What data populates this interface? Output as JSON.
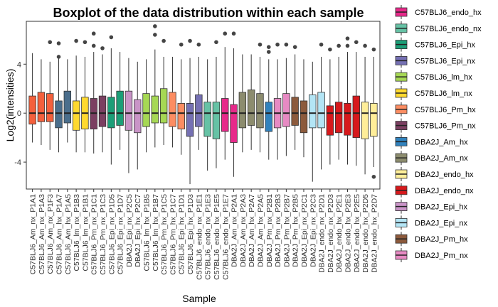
{
  "chart_data": {
    "type": "boxplot",
    "title": "Boxplot of the data distribution within each sample",
    "xlabel": "Sample",
    "ylabel": "Log2(intensities)",
    "ylim": [
      -6.2,
      7.5
    ],
    "yticks": [
      -4,
      0,
      4
    ],
    "ytick_labels": [
      "-4",
      "0",
      "4"
    ],
    "legend_position": "right",
    "grid": false,
    "groups": [
      {
        "name": "C57BLJ6_endo_hx",
        "color": "#E7298A"
      },
      {
        "name": "C57BLJ6_endo_nx",
        "color": "#66C2A5"
      },
      {
        "name": "C57BLJ6_Epi_hx",
        "color": "#1B9E77"
      },
      {
        "name": "C57BLJ6_Epi_nx",
        "color": "#7570B3"
      },
      {
        "name": "C57BLJ6_lm_hx",
        "color": "#A6D854"
      },
      {
        "name": "C57BLJ6_lm_nx",
        "color": "#FFD92F"
      },
      {
        "name": "C57BLJ6_Pm_hx",
        "color": "#FC8D62"
      },
      {
        "name": "C57BLJ6_Pm_nx",
        "color": "#7B3F61"
      },
      {
        "name": "DBA2J_Am_hx",
        "color": "#3182BD"
      },
      {
        "name": "DBA2J_Am_nx",
        "color": "#8C8C6E"
      },
      {
        "name": "DBA2J_endo_hx",
        "color": "#FFEE99"
      },
      {
        "name": "DBA2J_endo_nx",
        "color": "#D7191C"
      },
      {
        "name": "DBA2J_Epi_hx",
        "color": "#C994C7"
      },
      {
        "name": "DBA2J_Epi_nx",
        "color": "#B3E5F5"
      },
      {
        "name": "DBA2J_Pm_hx",
        "color": "#8C5A3C"
      },
      {
        "name": "DBA2J_Pm_nx",
        "color": "#E78AC3"
      }
    ],
    "samples": [
      {
        "label": "C57BLJ6_Am_nx_P1A1",
        "color": "#F4603C",
        "q1": -0.9,
        "median": 0,
        "q3": 1.4,
        "wlow": -2.4,
        "whigh": 4.9,
        "outliers": []
      },
      {
        "label": "C57BLJ6_Am_nx_P1A3",
        "color": "#F4603C",
        "q1": -0.7,
        "median": 0,
        "q3": 1.7,
        "wlow": -2.6,
        "whigh": 4.4,
        "outliers": []
      },
      {
        "label": "C57BLJ6_Am_nx_P1F3",
        "color": "#F4603C",
        "q1": -0.7,
        "median": 0,
        "q3": 1.6,
        "wlow": -3.0,
        "whigh": 4.2,
        "outliers": [
          5.8
        ]
      },
      {
        "label": "C57BLJ6_Am_hx_P1A7",
        "color": "#4A6E8C",
        "q1": -1.2,
        "median": 0,
        "q3": 1.0,
        "wlow": -3.2,
        "whigh": 4.5,
        "outliers": [
          4.6,
          5.7
        ]
      },
      {
        "label": "C57BLJ6_Am_hx_P1A5",
        "color": "#4A6E8C",
        "q1": -0.8,
        "median": 0,
        "q3": 1.8,
        "wlow": -2.4,
        "whigh": 4.4,
        "outliers": []
      },
      {
        "label": "C57BLJ6_lm_nx_P1B3",
        "color": "#FFD92F",
        "q1": -1.4,
        "median": 0,
        "q3": 1.0,
        "wlow": -3.2,
        "whigh": 4.7,
        "outliers": [
          5.9
        ]
      },
      {
        "label": "C57BLJ6_lm_nx_P1B1",
        "color": "#FFD92F",
        "q1": -1.3,
        "median": 0,
        "q3": 1.3,
        "wlow": -3.2,
        "whigh": 4.6,
        "outliers": [
          5.8
        ]
      },
      {
        "label": "C57BLJ6_Pm_nx_P1C1",
        "color": "#7B3F61",
        "q1": -1.3,
        "median": 0,
        "q3": 1.2,
        "wlow": -3.3,
        "whigh": 5.0,
        "outliers": [
          5.5,
          6.5
        ]
      },
      {
        "label": "C57BLJ6_Pm_nx_P1C3",
        "color": "#7B3F61",
        "q1": -1.1,
        "median": 0,
        "q3": 1.4,
        "wlow": -3.2,
        "whigh": 4.8,
        "outliers": [
          5.3
        ]
      },
      {
        "label": "C57BLJ6_Epi_nx_P1D5",
        "color": "#1B9E77",
        "q1": -1.2,
        "median": 0,
        "q3": 1.3,
        "wlow": -4.2,
        "whigh": 5.3,
        "outliers": [
          6.2
        ]
      },
      {
        "label": "C57BLJ6_Epi_nx_P1D7",
        "color": "#1B9E77",
        "q1": -1.0,
        "median": 0,
        "q3": 1.8,
        "wlow": -3.0,
        "whigh": 5.0,
        "outliers": []
      },
      {
        "label": "DBA2J_Epi_nx_P2C5",
        "color": "#C994C7",
        "q1": -1.4,
        "median": 0,
        "q3": 1.8,
        "wlow": -4.9,
        "whigh": 4.5,
        "outliers": []
      },
      {
        "label": "DBA2J_Epi_hx_P2C7",
        "color": "#C994C7",
        "q1": -1.6,
        "median": 0,
        "q3": 1.1,
        "wlow": -4.6,
        "whigh": 4.2,
        "outliers": []
      },
      {
        "label": "C57BLJ6_lm_hx_P1B5",
        "color": "#A6D854",
        "q1": -1.1,
        "median": 0,
        "q3": 1.6,
        "wlow": -3.2,
        "whigh": 4.4,
        "outliers": []
      },
      {
        "label": "C57BLJ6_lm_hx_P1B7",
        "color": "#A6D854",
        "q1": -0.8,
        "median": 0,
        "q3": 1.4,
        "wlow": -2.8,
        "whigh": 5.2,
        "outliers": [
          6.4,
          7.1
        ]
      },
      {
        "label": "C57BLJ6_Pm_hx_P1C5",
        "color": "#A6D854",
        "q1": -0.8,
        "median": 0,
        "q3": 2.0,
        "wlow": -2.6,
        "whigh": 4.6,
        "outliers": [
          5.9
        ]
      },
      {
        "label": "C57BLJ6_Pm_hx_P1C7",
        "color": "#FC8D62",
        "q1": -1.1,
        "median": 0,
        "q3": 1.7,
        "wlow": -2.8,
        "whigh": 4.6,
        "outliers": []
      },
      {
        "label": "C57BLJ6_Epi_hx_P1D1",
        "color": "#FC8D62",
        "q1": -1.3,
        "median": 0,
        "q3": 0.8,
        "wlow": -3.4,
        "whigh": 4.4,
        "outliers": [
          5.6
        ]
      },
      {
        "label": "C57BLJ6_Epi_hx_P1D3",
        "color": "#7570B3",
        "q1": -1.9,
        "median": 0,
        "q3": 0.8,
        "wlow": -5.8,
        "whigh": 4.5,
        "outliers": [
          5.9
        ]
      },
      {
        "label": "C57BLJ6_endo_nx_P1E1",
        "color": "#7570B3",
        "q1": -1.1,
        "median": 0,
        "q3": 1.5,
        "wlow": -3.0,
        "whigh": 4.6,
        "outliers": [
          5.6
        ]
      },
      {
        "label": "C57BLJ6_endo_nx_P1E3",
        "color": "#66C2A5",
        "q1": -1.9,
        "median": 0,
        "q3": 0.9,
        "wlow": -4.7,
        "whigh": 4.4,
        "outliers": []
      },
      {
        "label": "C57BLJ6_endo_hx_P1E5",
        "color": "#66C2A5",
        "q1": -2.1,
        "median": 0,
        "q3": 0.9,
        "wlow": -4.5,
        "whigh": 4.6,
        "outliers": [
          5.8
        ]
      },
      {
        "label": "C57BLJ6_endo_hx_P1E7",
        "color": "#E7298A",
        "q1": -1.5,
        "median": 0,
        "q3": 1.2,
        "wlow": -3.8,
        "whigh": 5.4,
        "outliers": [
          6.5
        ]
      },
      {
        "label": "DBA2J_Am_nx_P2A1",
        "color": "#E7298A",
        "q1": -2.4,
        "median": 0,
        "q3": 0.7,
        "wlow": -5.2,
        "whigh": 5.3,
        "outliers": [
          6.5
        ]
      },
      {
        "label": "DBA2J_Am_nx_P2A3",
        "color": "#8C8C6E",
        "q1": -1.2,
        "median": 0,
        "q3": 1.7,
        "wlow": -3.2,
        "whigh": 4.8,
        "outliers": []
      },
      {
        "label": "DBA2J_Am_hx_P2A7",
        "color": "#8C8C6E",
        "q1": -1.0,
        "median": 0,
        "q3": 1.9,
        "wlow": -3.0,
        "whigh": 4.8,
        "outliers": []
      },
      {
        "label": "DBA2J_Am_hx_P2A5",
        "color": "#8C8C6E",
        "q1": -1.2,
        "median": 0,
        "q3": 1.6,
        "wlow": -3.2,
        "whigh": 4.6,
        "outliers": [
          5.6
        ]
      },
      {
        "label": "DBA2J_Pm_nx_P2B1",
        "color": "#3182BD",
        "q1": -1.5,
        "median": 0,
        "q3": 0.9,
        "wlow": -3.8,
        "whigh": 4.4,
        "outliers": [
          5.4,
          5.0
        ]
      },
      {
        "label": "DBA2J_Pm_nx_P2B3",
        "color": "#E78AC3",
        "q1": -1.2,
        "median": 0,
        "q3": 1.2,
        "wlow": -3.8,
        "whigh": 4.4,
        "outliers": [
          5.6
        ]
      },
      {
        "label": "DBA2J_Pm_hx_P2B7",
        "color": "#E78AC3",
        "q1": -1.1,
        "median": 0,
        "q3": 1.6,
        "wlow": -3.5,
        "whigh": 4.5,
        "outliers": [
          5.6
        ]
      },
      {
        "label": "DBA2J_Pm_hx_P2B5",
        "color": "#8C5A3C",
        "q1": -1.0,
        "median": 0,
        "q3": 1.3,
        "wlow": -3.0,
        "whigh": 4.8,
        "outliers": [
          5.4
        ]
      },
      {
        "label": "DBA2J_Epi_nx_P2C1",
        "color": "#8C5A3C",
        "q1": -1.6,
        "median": 0,
        "q3": 1.0,
        "wlow": -3.6,
        "whigh": 4.4,
        "outliers": []
      },
      {
        "label": "DBA2J_Epi_nx_P2C3",
        "color": "#B3E5F5",
        "q1": -1.2,
        "median": 0,
        "q3": 1.5,
        "wlow": -5.6,
        "whigh": 4.2,
        "outliers": []
      },
      {
        "label": "DBA2J_endo_nx_P2D1",
        "color": "#B3E5F5",
        "q1": -1.2,
        "median": 0,
        "q3": 1.7,
        "wlow": -4.6,
        "whigh": 4.6,
        "outliers": [
          5.6
        ]
      },
      {
        "label": "DBA2J_endo_nx_P2D3",
        "color": "#D7191C",
        "q1": -1.8,
        "median": 0,
        "q3": 0.6,
        "wlow": -4.2,
        "whigh": 4.4,
        "outliers": [
          5.2
        ]
      },
      {
        "label": "DBA2J_endo_hx_P2E1",
        "color": "#D7191C",
        "q1": -1.6,
        "median": 0,
        "q3": 0.9,
        "wlow": -3.8,
        "whigh": 4.6,
        "outliers": [
          5.5
        ]
      },
      {
        "label": "DBA2J_endo_hx_P2E3",
        "color": "#D7191C",
        "q1": -1.8,
        "median": 0,
        "q3": 0.8,
        "wlow": -4.2,
        "whigh": 5.0,
        "outliers": [
          6.1,
          5.5
        ]
      },
      {
        "label": "DBA2J_endo_hx_P2E5",
        "color": "#D7191C",
        "q1": -2.0,
        "median": 0,
        "q3": 1.4,
        "wlow": -4.3,
        "whigh": 5.0,
        "outliers": [
          5.8
        ]
      },
      {
        "label": "DBA2J_endo_hx_P2D5",
        "color": "#FFEE99",
        "q1": -2.1,
        "median": 0,
        "q3": 0.9,
        "wlow": -5.0,
        "whigh": 4.6,
        "outliers": [
          5.5
        ]
      },
      {
        "label": "DBA2J_endo_hx_P2D7",
        "color": "#FFEE99",
        "q1": -1.9,
        "median": 0,
        "q3": 0.8,
        "wlow": -4.4,
        "whigh": 4.6,
        "outliers": [
          5.2,
          -5.2
        ]
      }
    ]
  }
}
